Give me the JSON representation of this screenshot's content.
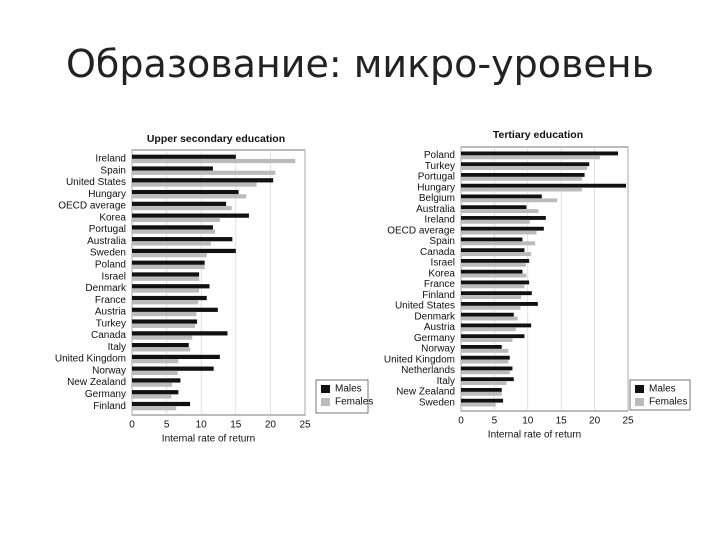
{
  "title": "Образование: микро-уровень",
  "chart_data": [
    {
      "type": "bar",
      "orientation": "horizontal",
      "title": "Upper secondary education",
      "xlabel": "Internal rate of return",
      "categories": [
        "Ireland",
        "Spain",
        "United States",
        "Hungary",
        "OECD average",
        "Korea",
        "Portugal",
        "Australia",
        "Sweden",
        "Poland",
        "Israel",
        "Denmark",
        "France",
        "Austria",
        "Turkey",
        "Canada",
        "Italy",
        "United Kingdom",
        "Norway",
        "New Zealand",
        "Germany",
        "Finland"
      ],
      "series": [
        {
          "name": "Males",
          "color": "#111111",
          "values": [
            15.0,
            11.7,
            20.4,
            15.4,
            13.6,
            16.9,
            11.7,
            14.5,
            15.0,
            10.5,
            9.7,
            11.2,
            10.8,
            12.4,
            9.4,
            13.8,
            8.2,
            12.7,
            11.8,
            7.0,
            6.7,
            8.4
          ]
        },
        {
          "name": "Females",
          "color": "#bbbbbb",
          "values": [
            23.6,
            20.7,
            18.0,
            16.5,
            14.4,
            12.7,
            12.0,
            11.4,
            10.8,
            10.5,
            9.7,
            9.7,
            9.6,
            9.3,
            9.1,
            8.7,
            8.4,
            6.7,
            6.6,
            5.8,
            5.7,
            6.4
          ]
        }
      ],
      "xlim": [
        0,
        25
      ],
      "xticks": [
        0,
        5,
        10,
        15,
        20,
        25
      ],
      "grid": true,
      "legend": "lower right"
    },
    {
      "type": "bar",
      "orientation": "horizontal",
      "title": "Tertiary education",
      "xlabel": "Internal rate of return",
      "categories": [
        "Poland",
        "Turkey",
        "Portugal",
        "Hungary",
        "Belgium",
        "Australia",
        "Ireland",
        "OECD average",
        "Spain",
        "Canada",
        "Israel",
        "Korea",
        "France",
        "Finland",
        "United States",
        "Denmark",
        "Austria",
        "Germany",
        "Norway",
        "United Kingdom",
        "Netherlands",
        "Italy",
        "New Zealand",
        "Sweden"
      ],
      "series": [
        {
          "name": "Males",
          "color": "#111111",
          "values": [
            23.5,
            19.2,
            18.5,
            24.7,
            12.1,
            9.8,
            12.7,
            12.4,
            9.2,
            9.5,
            10.2,
            9.2,
            10.2,
            10.6,
            11.5,
            7.9,
            10.5,
            9.5,
            6.1,
            7.3,
            7.7,
            7.9,
            6.1,
            6.3
          ]
        },
        {
          "name": "Females",
          "color": "#bbbbbb",
          "values": [
            20.8,
            18.9,
            18.1,
            18.1,
            14.4,
            11.6,
            10.3,
            11.3,
            11.1,
            10.5,
            9.7,
            9.8,
            9.5,
            9.0,
            8.9,
            8.5,
            8.2,
            7.7,
            7.1,
            7.1,
            7.3,
            6.8,
            6.1,
            5.2
          ]
        }
      ],
      "xlim": [
        0,
        25
      ],
      "xticks": [
        0,
        5,
        10,
        15,
        20,
        25
      ],
      "grid": true,
      "legend": "lower right"
    }
  ]
}
